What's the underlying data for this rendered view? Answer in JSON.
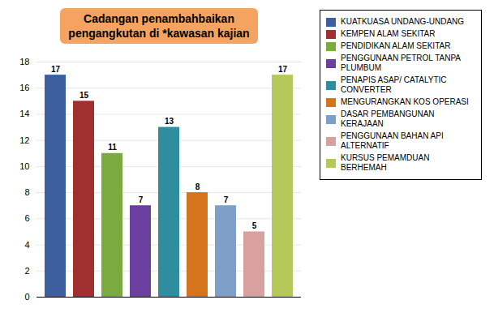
{
  "chart_data": {
    "type": "bar",
    "title": "Cadangan penambahbaikan\npengangkutan di *kawasan kajian",
    "categories": [
      "KUATKUASA UNDANG-UNDANG",
      "KEMPEN ALAM SEKITAR",
      "PENDIDIKAN ALAM SEKITAR",
      "PENGGUNAAN PETROL TANPA\nPLUMBUM",
      "PENAPIS ASAP/ CATALYTIC\nCONVERTER",
      "MENGURANGKAN KOS OPERASI",
      "DASAR PEMBANGUNAN KERAJAAN",
      "PENGGUNAAN BAHAN API\nALTERNATIF",
      "KURSUS PEMAMDUAN BERHEMAH"
    ],
    "values": [
      17,
      15,
      11,
      7,
      13,
      8,
      7,
      5,
      17
    ],
    "colors": [
      "#3D5FA0",
      "#A03030",
      "#7AAA40",
      "#6B3FA0",
      "#2E8EA0",
      "#D4741C",
      "#7EA0C8",
      "#D9A0A0",
      "#B5C95A"
    ],
    "ylim": [
      0,
      18
    ],
    "yticks": [
      0,
      2,
      4,
      6,
      8,
      10,
      12,
      14,
      16,
      18
    ],
    "grid": true,
    "data_labels": true,
    "legend": "right",
    "tick_labels": "y"
  }
}
